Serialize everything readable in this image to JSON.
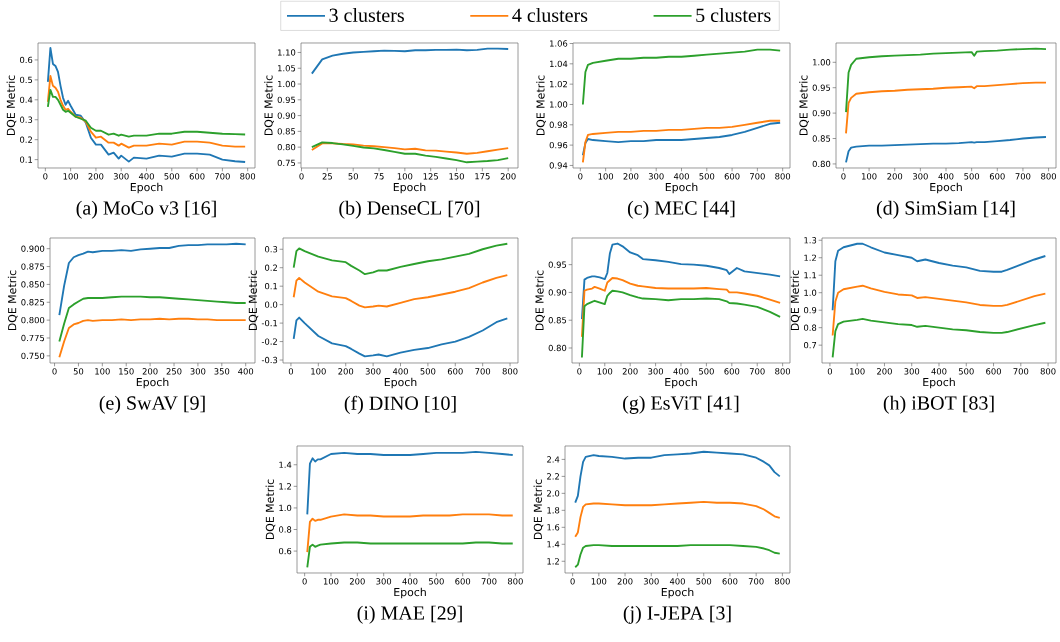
{
  "chart_data": [
    {
      "type": "line",
      "title": "(a) MoCo v3 [16]",
      "xlabel": "Epoch",
      "ylabel": "DQE Metric",
      "legend": "top",
      "x": [
        10,
        20,
        30,
        40,
        50,
        60,
        70,
        80,
        90,
        100,
        120,
        140,
        160,
        180,
        200,
        220,
        250,
        270,
        290,
        300,
        330,
        350,
        400,
        450,
        500,
        550,
        600,
        650,
        700,
        750,
        790
      ],
      "series": [
        {
          "name": "3 clusters",
          "color": "#1f77b4",
          "values": [
            0.49,
            0.66,
            0.58,
            0.57,
            0.54,
            0.47,
            0.41,
            0.375,
            0.395,
            0.37,
            0.325,
            0.32,
            0.285,
            0.21,
            0.175,
            0.175,
            0.125,
            0.135,
            0.105,
            0.12,
            0.09,
            0.11,
            0.105,
            0.12,
            0.115,
            0.13,
            0.13,
            0.125,
            0.1,
            0.092,
            0.088
          ]
        },
        {
          "name": "4 clusters",
          "color": "#ff7f0e",
          "values": [
            0.39,
            0.52,
            0.47,
            0.46,
            0.44,
            0.4,
            0.37,
            0.35,
            0.355,
            0.34,
            0.315,
            0.31,
            0.29,
            0.24,
            0.21,
            0.215,
            0.185,
            0.185,
            0.17,
            0.18,
            0.16,
            0.17,
            0.17,
            0.18,
            0.175,
            0.19,
            0.19,
            0.185,
            0.17,
            0.165,
            0.165
          ]
        },
        {
          "name": "5 clusters",
          "color": "#2ca02c",
          "values": [
            0.365,
            0.45,
            0.415,
            0.415,
            0.4,
            0.375,
            0.35,
            0.34,
            0.345,
            0.335,
            0.315,
            0.305,
            0.295,
            0.26,
            0.245,
            0.245,
            0.225,
            0.23,
            0.22,
            0.225,
            0.215,
            0.22,
            0.22,
            0.23,
            0.23,
            0.24,
            0.24,
            0.235,
            0.23,
            0.228,
            0.226
          ]
        }
      ],
      "xlim": [
        -29,
        829
      ],
      "ylim": [
        0.058,
        0.685
      ],
      "xticks": [
        0,
        100,
        200,
        300,
        400,
        500,
        600,
        700,
        800
      ],
      "yticks": [
        0.1,
        0.2,
        0.3,
        0.4,
        0.5,
        0.6
      ]
    },
    {
      "type": "line",
      "title": "(b) DenseCL [70]",
      "xlabel": "Epoch",
      "ylabel": "DQE Metric",
      "x": [
        10,
        20,
        30,
        40,
        50,
        60,
        70,
        80,
        90,
        100,
        110,
        120,
        130,
        140,
        150,
        160,
        170,
        180,
        190,
        200
      ],
      "series": [
        {
          "color": "#1f77b4",
          "values": [
            1.033,
            1.078,
            1.09,
            1.096,
            1.1,
            1.102,
            1.104,
            1.106,
            1.105,
            1.104,
            1.107,
            1.107,
            1.108,
            1.108,
            1.109,
            1.107,
            1.108,
            1.112,
            1.112,
            1.111
          ]
        },
        {
          "color": "#ff7f0e",
          "values": [
            0.791,
            0.812,
            0.812,
            0.81,
            0.809,
            0.805,
            0.803,
            0.8,
            0.797,
            0.793,
            0.795,
            0.79,
            0.789,
            0.786,
            0.783,
            0.779,
            0.782,
            0.787,
            0.792,
            0.797
          ]
        },
        {
          "color": "#2ca02c",
          "values": [
            0.8,
            0.815,
            0.813,
            0.809,
            0.804,
            0.799,
            0.796,
            0.791,
            0.785,
            0.779,
            0.779,
            0.773,
            0.769,
            0.764,
            0.759,
            0.752,
            0.754,
            0.756,
            0.759,
            0.765
          ]
        }
      ],
      "xlim": [
        -0.5,
        209.5
      ],
      "ylim": [
        0.734,
        1.13
      ],
      "xticks": [
        0,
        25,
        50,
        75,
        100,
        125,
        150,
        175,
        200
      ],
      "yticks": [
        0.75,
        {
          "value": 0.8,
          "label": "0.80"
        },
        0.85,
        {
          "value": 0.9,
          "label": "0.90"
        },
        0.95,
        {
          "value": 1.0,
          "label": "1.00"
        },
        1.05,
        {
          "value": 1.1,
          "label": "1.10"
        }
      ]
    },
    {
      "type": "line",
      "title": "(c) MEC [44]",
      "xlabel": "Epoch",
      "ylabel": "DQE Metric",
      "x": [
        10,
        20,
        30,
        50,
        100,
        150,
        200,
        250,
        300,
        350,
        400,
        450,
        500,
        550,
        600,
        650,
        700,
        750,
        790
      ],
      "series": [
        {
          "color": "#1f77b4",
          "values": [
            0.95,
            0.962,
            0.966,
            0.965,
            0.964,
            0.963,
            0.964,
            0.964,
            0.965,
            0.965,
            0.965,
            0.966,
            0.967,
            0.968,
            0.97,
            0.973,
            0.977,
            0.981,
            0.982
          ]
        },
        {
          "color": "#ff7f0e",
          "values": [
            0.943,
            0.963,
            0.97,
            0.971,
            0.972,
            0.973,
            0.973,
            0.974,
            0.974,
            0.975,
            0.975,
            0.976,
            0.977,
            0.977,
            0.978,
            0.98,
            0.982,
            0.984,
            0.984
          ]
        },
        {
          "color": "#2ca02c",
          "values": [
            1.0,
            1.032,
            1.039,
            1.041,
            1.043,
            1.045,
            1.045,
            1.046,
            1.046,
            1.047,
            1.047,
            1.048,
            1.049,
            1.05,
            1.051,
            1.052,
            1.054,
            1.054,
            1.053
          ]
        }
      ],
      "xlim": [
        -29,
        829
      ],
      "ylim": [
        0.9375,
        1.0605
      ],
      "xticks": [
        0,
        100,
        200,
        300,
        400,
        500,
        600,
        700,
        800
      ],
      "yticks": [
        0.94,
        0.96,
        0.98,
        {
          "value": 1.0,
          "label": "1.00"
        },
        1.02,
        1.04,
        1.06
      ]
    },
    {
      "type": "line",
      "title": "(d) SimSiam [14]",
      "xlabel": "Epoch",
      "ylabel": "DQE Metric",
      "x": [
        10,
        20,
        30,
        50,
        100,
        150,
        200,
        250,
        300,
        350,
        400,
        450,
        500,
        510,
        520,
        550,
        600,
        650,
        700,
        750,
        790
      ],
      "series": [
        {
          "color": "#1f77b4",
          "values": [
            0.803,
            0.825,
            0.832,
            0.834,
            0.836,
            0.836,
            0.837,
            0.838,
            0.839,
            0.84,
            0.84,
            0.841,
            0.843,
            0.842,
            0.843,
            0.843,
            0.845,
            0.847,
            0.85,
            0.852,
            0.853
          ]
        },
        {
          "color": "#ff7f0e",
          "values": [
            0.86,
            0.92,
            0.93,
            0.938,
            0.941,
            0.943,
            0.944,
            0.946,
            0.947,
            0.948,
            0.95,
            0.951,
            0.952,
            0.949,
            0.953,
            0.953,
            0.955,
            0.957,
            0.959,
            0.96,
            0.96
          ]
        },
        {
          "color": "#2ca02c",
          "values": [
            0.902,
            0.98,
            0.995,
            1.007,
            1.01,
            1.012,
            1.013,
            1.014,
            1.015,
            1.017,
            1.018,
            1.019,
            1.02,
            1.013,
            1.021,
            1.022,
            1.023,
            1.025,
            1.026,
            1.027,
            1.026
          ]
        }
      ],
      "xlim": [
        -29,
        829
      ],
      "ylim": [
        0.792,
        1.038
      ],
      "xticks": [
        0,
        100,
        200,
        300,
        400,
        500,
        600,
        700,
        800
      ],
      "yticks": [
        {
          "value": 0.8,
          "label": "0.80"
        },
        0.85,
        {
          "value": 0.9,
          "label": "0.90"
        },
        0.95,
        {
          "value": 1.0,
          "label": "1.00"
        }
      ]
    },
    {
      "type": "line",
      "title": "(e) SwAV [9]",
      "xlabel": "Epoch",
      "ylabel": "DQE Metric",
      "x": [
        10,
        20,
        30,
        40,
        50,
        60,
        70,
        80,
        100,
        120,
        140,
        160,
        180,
        200,
        220,
        240,
        260,
        280,
        300,
        320,
        340,
        360,
        380,
        400
      ],
      "series": [
        {
          "color": "#1f77b4",
          "values": [
            0.807,
            0.848,
            0.88,
            0.888,
            0.891,
            0.893,
            0.896,
            0.895,
            0.897,
            0.897,
            0.898,
            0.897,
            0.899,
            0.9,
            0.901,
            0.901,
            0.904,
            0.905,
            0.905,
            0.906,
            0.906,
            0.906,
            0.907,
            0.906
          ]
        },
        {
          "color": "#ff7f0e",
          "values": [
            0.748,
            0.77,
            0.789,
            0.794,
            0.796,
            0.799,
            0.8,
            0.799,
            0.8,
            0.8,
            0.801,
            0.8,
            0.801,
            0.801,
            0.802,
            0.801,
            0.802,
            0.802,
            0.801,
            0.801,
            0.8,
            0.8,
            0.8,
            0.8
          ]
        },
        {
          "color": "#2ca02c",
          "values": [
            0.77,
            0.795,
            0.817,
            0.822,
            0.826,
            0.83,
            0.831,
            0.831,
            0.831,
            0.832,
            0.833,
            0.833,
            0.833,
            0.832,
            0.832,
            0.831,
            0.83,
            0.829,
            0.828,
            0.827,
            0.826,
            0.825,
            0.824,
            0.824
          ]
        }
      ],
      "xlim": [
        -9.5,
        419.5
      ],
      "ylim": [
        0.74,
        0.915
      ],
      "xticks": [
        0,
        50,
        100,
        150,
        200,
        250,
        300,
        350,
        400
      ],
      "yticks": [
        {
          "value": 0.75,
          "label": "0.750"
        },
        0.775,
        {
          "value": 0.8,
          "label": "0.800"
        },
        0.825,
        {
          "value": 0.85,
          "label": "0.850"
        },
        0.875,
        {
          "value": 0.9,
          "label": "0.900"
        }
      ]
    },
    {
      "type": "line",
      "title": "(f) DINO [10]",
      "xlabel": "Epoch",
      "ylabel": "DQE Metric",
      "x": [
        10,
        20,
        30,
        50,
        100,
        150,
        200,
        220,
        250,
        270,
        300,
        320,
        350,
        400,
        450,
        500,
        550,
        600,
        650,
        700,
        750,
        790
      ],
      "series": [
        {
          "color": "#1f77b4",
          "values": [
            -0.185,
            -0.085,
            -0.07,
            -0.1,
            -0.17,
            -0.21,
            -0.225,
            -0.24,
            -0.265,
            -0.28,
            -0.275,
            -0.27,
            -0.28,
            -0.26,
            -0.245,
            -0.235,
            -0.215,
            -0.2,
            -0.175,
            -0.14,
            -0.095,
            -0.075
          ]
        },
        {
          "color": "#ff7f0e",
          "values": [
            0.04,
            0.13,
            0.145,
            0.12,
            0.07,
            0.045,
            0.035,
            0.02,
            -0.005,
            -0.015,
            -0.01,
            -0.005,
            -0.01,
            0.01,
            0.03,
            0.04,
            0.055,
            0.07,
            0.09,
            0.12,
            0.145,
            0.16
          ]
        },
        {
          "color": "#2ca02c",
          "values": [
            0.2,
            0.29,
            0.305,
            0.29,
            0.26,
            0.24,
            0.23,
            0.21,
            0.185,
            0.165,
            0.175,
            0.185,
            0.185,
            0.205,
            0.22,
            0.235,
            0.245,
            0.26,
            0.275,
            0.3,
            0.32,
            0.33
          ]
        }
      ],
      "xlim": [
        -29,
        829
      ],
      "ylim": [
        -0.316,
        0.361
      ],
      "xticks": [
        0,
        100,
        200,
        300,
        400,
        500,
        600,
        700,
        800
      ],
      "yticks": [
        -0.3,
        -0.2,
        -0.1,
        {
          "value": 0,
          "label": "0.0"
        },
        0.1,
        0.2,
        0.3
      ]
    },
    {
      "type": "line",
      "title": "(g) EsViT [41]",
      "xlabel": "Epoch",
      "ylabel": "DQE Metric",
      "x": [
        10,
        20,
        30,
        50,
        60,
        80,
        100,
        110,
        120,
        130,
        150,
        170,
        200,
        230,
        250,
        300,
        350,
        400,
        450,
        500,
        550,
        580,
        590,
        620,
        650,
        700,
        750,
        790
      ],
      "series": [
        {
          "color": "#1f77b4",
          "values": [
            0.852,
            0.923,
            0.926,
            0.929,
            0.929,
            0.927,
            0.924,
            0.935,
            0.97,
            0.986,
            0.988,
            0.983,
            0.972,
            0.967,
            0.96,
            0.958,
            0.955,
            0.951,
            0.95,
            0.948,
            0.944,
            0.94,
            0.933,
            0.944,
            0.938,
            0.935,
            0.932,
            0.929
          ]
        },
        {
          "color": "#ff7f0e",
          "values": [
            0.82,
            0.903,
            0.905,
            0.907,
            0.91,
            0.907,
            0.903,
            0.918,
            0.922,
            0.926,
            0.925,
            0.922,
            0.916,
            0.912,
            0.911,
            0.908,
            0.907,
            0.907,
            0.907,
            0.908,
            0.906,
            0.905,
            0.9,
            0.9,
            0.898,
            0.894,
            0.887,
            0.881
          ]
        },
        {
          "color": "#2ca02c",
          "values": [
            0.783,
            0.875,
            0.879,
            0.883,
            0.885,
            0.882,
            0.879,
            0.894,
            0.899,
            0.903,
            0.902,
            0.9,
            0.895,
            0.891,
            0.889,
            0.888,
            0.886,
            0.888,
            0.888,
            0.889,
            0.888,
            0.884,
            0.881,
            0.88,
            0.878,
            0.874,
            0.865,
            0.856
          ]
        }
      ],
      "xlim": [
        -29,
        829
      ],
      "ylim": [
        0.773,
        0.998
      ],
      "xticks": [
        0,
        100,
        200,
        300,
        400,
        500,
        600,
        700,
        800
      ],
      "yticks": [
        {
          "value": 0.8,
          "label": "0.80"
        },
        0.85,
        {
          "value": 0.9,
          "label": "0.90"
        },
        0.95
      ]
    },
    {
      "type": "line",
      "title": "(h) iBOT [83]",
      "xlabel": "Epoch",
      "ylabel": "DQE Metric",
      "x": [
        10,
        20,
        30,
        50,
        100,
        120,
        150,
        200,
        250,
        300,
        320,
        350,
        400,
        450,
        500,
        550,
        600,
        630,
        650,
        700,
        750,
        790
      ],
      "series": [
        {
          "color": "#1f77b4",
          "values": [
            0.9,
            1.18,
            1.24,
            1.26,
            1.28,
            1.28,
            1.26,
            1.23,
            1.215,
            1.2,
            1.18,
            1.19,
            1.17,
            1.155,
            1.145,
            1.125,
            1.12,
            1.12,
            1.13,
            1.16,
            1.19,
            1.21
          ]
        },
        {
          "color": "#ff7f0e",
          "values": [
            0.755,
            0.95,
            1.0,
            1.02,
            1.035,
            1.04,
            1.025,
            1.005,
            0.99,
            0.985,
            0.97,
            0.975,
            0.965,
            0.955,
            0.945,
            0.93,
            0.925,
            0.925,
            0.93,
            0.955,
            0.98,
            0.995
          ]
        },
        {
          "color": "#2ca02c",
          "values": [
            0.63,
            0.78,
            0.82,
            0.835,
            0.845,
            0.85,
            0.84,
            0.83,
            0.82,
            0.815,
            0.805,
            0.81,
            0.8,
            0.79,
            0.785,
            0.775,
            0.77,
            0.77,
            0.775,
            0.795,
            0.815,
            0.828
          ]
        }
      ],
      "xlim": [
        -29,
        829
      ],
      "ylim": [
        0.598,
        1.313
      ],
      "xticks": [
        0,
        100,
        200,
        300,
        400,
        500,
        600,
        700,
        800
      ],
      "yticks": [
        0.7,
        0.8,
        0.9,
        {
          "value": 1,
          "label": "1.0"
        },
        1.1,
        1.2,
        1.3
      ]
    },
    {
      "type": "line",
      "title": "(i) MAE [29]",
      "xlabel": "Epoch",
      "ylabel": "DQE Metric",
      "x": [
        10,
        20,
        30,
        40,
        50,
        60,
        100,
        150,
        200,
        250,
        300,
        350,
        400,
        450,
        500,
        550,
        600,
        650,
        700,
        750,
        790
      ],
      "series": [
        {
          "color": "#1f77b4",
          "values": [
            0.94,
            1.41,
            1.46,
            1.43,
            1.45,
            1.45,
            1.5,
            1.51,
            1.5,
            1.5,
            1.49,
            1.49,
            1.49,
            1.5,
            1.51,
            1.51,
            1.51,
            1.52,
            1.51,
            1.5,
            1.49
          ]
        },
        {
          "color": "#ff7f0e",
          "values": [
            0.59,
            0.87,
            0.9,
            0.88,
            0.89,
            0.89,
            0.92,
            0.94,
            0.93,
            0.93,
            0.92,
            0.92,
            0.92,
            0.93,
            0.93,
            0.93,
            0.94,
            0.94,
            0.94,
            0.93,
            0.93
          ]
        },
        {
          "color": "#2ca02c",
          "values": [
            0.45,
            0.64,
            0.66,
            0.64,
            0.65,
            0.66,
            0.67,
            0.68,
            0.68,
            0.67,
            0.67,
            0.67,
            0.67,
            0.67,
            0.67,
            0.67,
            0.67,
            0.68,
            0.68,
            0.67,
            0.67
          ]
        }
      ],
      "xlim": [
        -29,
        829
      ],
      "ylim": [
        0.397,
        1.574
      ],
      "xticks": [
        0,
        100,
        200,
        300,
        400,
        500,
        600,
        700,
        800
      ],
      "yticks": [
        0.6,
        0.8,
        {
          "value": 1,
          "label": "1.0"
        },
        1.2,
        1.4
      ]
    },
    {
      "type": "line",
      "title": "(j) I-JEPA [3]",
      "xlabel": "Epoch",
      "ylabel": "DQE Metric",
      "x": [
        10,
        20,
        30,
        40,
        50,
        80,
        100,
        150,
        200,
        250,
        300,
        350,
        400,
        450,
        500,
        550,
        600,
        650,
        700,
        730,
        750,
        770,
        790
      ],
      "series": [
        {
          "color": "#1f77b4",
          "values": [
            1.89,
            1.97,
            2.2,
            2.37,
            2.43,
            2.45,
            2.44,
            2.43,
            2.41,
            2.42,
            2.42,
            2.45,
            2.46,
            2.47,
            2.49,
            2.48,
            2.47,
            2.46,
            2.42,
            2.37,
            2.33,
            2.25,
            2.2
          ]
        },
        {
          "color": "#ff7f0e",
          "values": [
            1.49,
            1.54,
            1.72,
            1.84,
            1.87,
            1.88,
            1.88,
            1.87,
            1.86,
            1.86,
            1.86,
            1.87,
            1.88,
            1.89,
            1.9,
            1.89,
            1.89,
            1.88,
            1.85,
            1.81,
            1.77,
            1.73,
            1.71
          ]
        },
        {
          "color": "#2ca02c",
          "values": [
            1.13,
            1.16,
            1.28,
            1.36,
            1.38,
            1.39,
            1.39,
            1.38,
            1.38,
            1.38,
            1.38,
            1.38,
            1.38,
            1.39,
            1.39,
            1.39,
            1.39,
            1.38,
            1.37,
            1.35,
            1.33,
            1.3,
            1.29
          ]
        }
      ],
      "xlim": [
        -29,
        829
      ],
      "ylim": [
        1.062,
        2.558
      ],
      "xticks": [
        0,
        100,
        200,
        300,
        400,
        500,
        600,
        700,
        800
      ],
      "yticks": [
        1.2,
        1.4,
        1.6,
        1.8,
        {
          "value": 2,
          "label": "2.0"
        },
        2.2,
        2.4
      ]
    }
  ]
}
